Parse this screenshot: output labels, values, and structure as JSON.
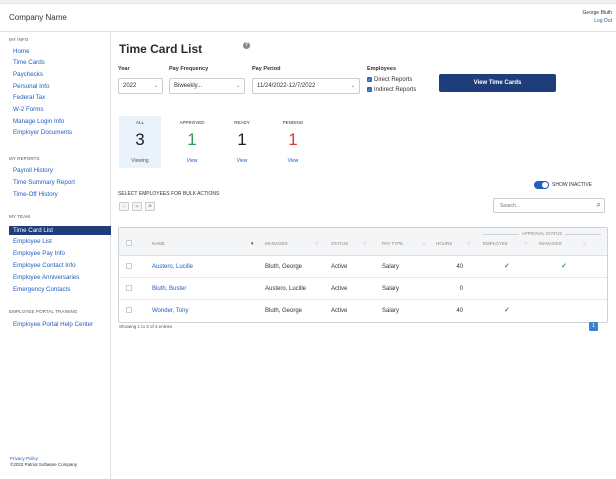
{
  "header": {
    "company": "Company Name",
    "user_name": "George Bluth",
    "logout": "Log Out"
  },
  "sidebar": {
    "sections": [
      {
        "title": "MY INFO",
        "items": [
          "Home",
          "Time Cards",
          "Paychecks",
          "Personal Info",
          "Federal Tax",
          "W-2 Forms",
          "Manage Login Info",
          "Employer Documents"
        ]
      },
      {
        "title": "MY REPORTS",
        "items": [
          "Payroll History",
          "Time Summary Report",
          "Time-Off History"
        ]
      },
      {
        "title": "MY TEAM",
        "items": [
          "Time Card List",
          "Employee List",
          "Employee Pay Info",
          "Employee Contact Info",
          "Employee Anniversaries",
          "Emergency Contacts"
        ]
      },
      {
        "title": "EMPLOYEE PORTAL TRAINING",
        "items": [
          "Employee Portal Help Center"
        ]
      }
    ],
    "active_item": "Time Card List",
    "footer": {
      "privacy": "Privacy Policy",
      "copyright": "©2022 Patriot Software Company"
    }
  },
  "main": {
    "title": "Time Card List",
    "filters": {
      "year_label": "Year",
      "year_value": "2022",
      "frequency_label": "Pay Frequency",
      "frequency_value": "Biweekly...",
      "period_label": "Pay Period",
      "period_value": "11/24/2022-12/7/2022",
      "employees_label": "Employees",
      "direct_reports": "Direct Reports",
      "indirect_reports": "Indirect Reports"
    },
    "view_button": "View Time Cards",
    "status_cards": [
      {
        "label": "ALL",
        "count": "3",
        "link": "Viewing",
        "color": "#222222"
      },
      {
        "label": "APPROVED",
        "count": "1",
        "link": "View",
        "color": "#2e9d55"
      },
      {
        "label": "READY",
        "count": "1",
        "link": "View",
        "color": "#222222"
      },
      {
        "label": "PENDING",
        "count": "1",
        "link": "View",
        "color": "#d83a3a"
      }
    ],
    "bulk_label": "SELECT EMPLOYEES FOR BULK ACTIONS",
    "show_inactive": "SHOW INACTIVE",
    "search_placeholder": "Search...",
    "table": {
      "group_header": "APPROVAL STATUS",
      "columns": [
        "NAME",
        "MANAGER",
        "STATUS",
        "PAY TYPE",
        "HOURS",
        "EMPLOYEE",
        "MANAGER"
      ],
      "rows": [
        {
          "name": "Austero, Lucille",
          "manager": "Bluth, George",
          "status": "Active",
          "pay_type": "Salary",
          "hours": "40",
          "employee_approved": true,
          "manager_approved": true
        },
        {
          "name": "Bluth, Buster",
          "manager": "Austero, Lucille",
          "status": "Active",
          "pay_type": "Salary",
          "hours": "0",
          "employee_approved": false,
          "manager_approved": false
        },
        {
          "name": "Wonder, Tony",
          "manager": "Bluth, George",
          "status": "Active",
          "pay_type": "Salary",
          "hours": "40",
          "employee_approved": true,
          "manager_approved": false
        }
      ]
    },
    "showing": "Showing 1 to 3 of 3 entries",
    "page": "1"
  }
}
